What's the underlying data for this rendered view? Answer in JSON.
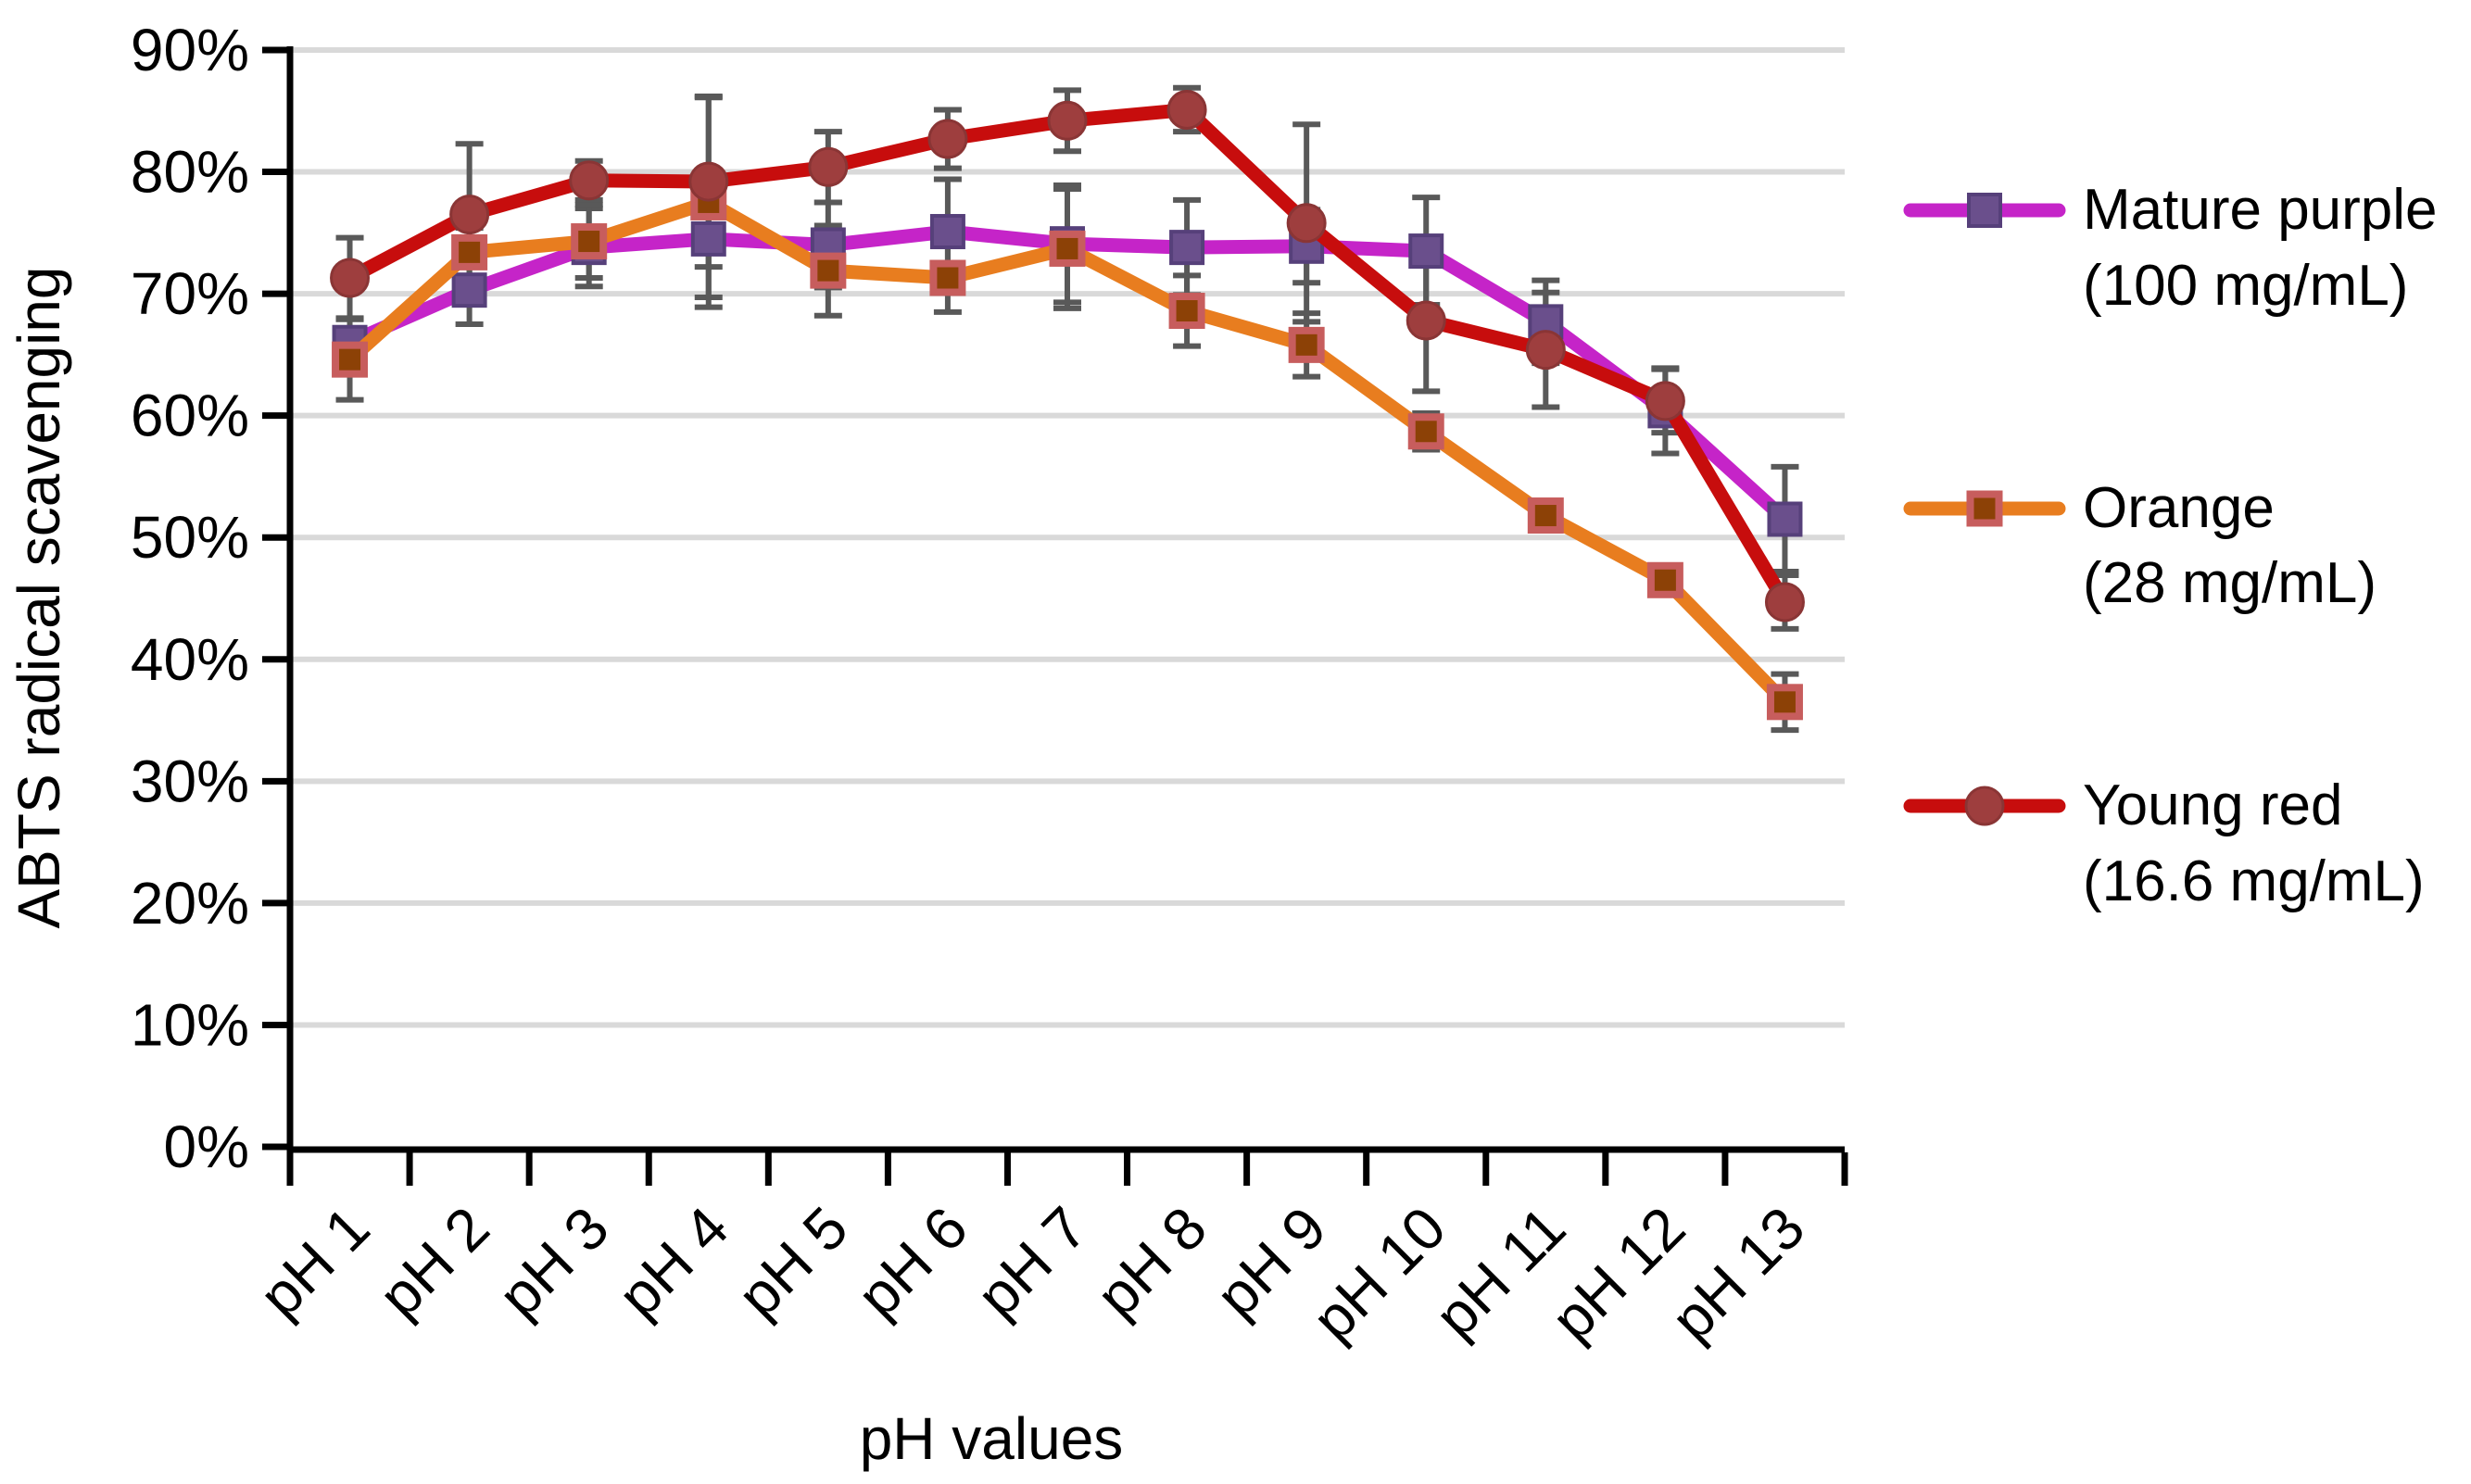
{
  "page": {
    "background": "#FFFFFF"
  },
  "chart_data": {
    "type": "line",
    "title": "",
    "xlabel": "pH values",
    "ylabel": "ABTS radical scavenging",
    "categories": [
      "pH 1",
      "pH 2",
      "pH 3",
      "pH 4",
      "pH 5",
      "pH 6",
      "pH 7",
      "pH 8",
      "pH 9",
      "pH 10",
      "pH 11",
      "pH 12",
      "pH 13"
    ],
    "y_ticks": [
      "0%",
      "10%",
      "20%",
      "30%",
      "40%",
      "50%",
      "60%",
      "70%",
      "80%",
      "90%"
    ],
    "ylim": [
      0,
      90
    ],
    "grid": "horizontal",
    "legend_position": "right",
    "error_bars": true,
    "series": [
      {
        "id": "mature-purple",
        "name": "Mature purple",
        "dose": "(100 mg/mL)",
        "line_color": "#C524C8",
        "marker": "square",
        "marker_fill": "#6A4F8C",
        "marker_stroke": "#56407A",
        "values": [
          66.0,
          70.3,
          73.8,
          74.5,
          74.0,
          75.1,
          74.1,
          73.8,
          73.9,
          73.5,
          67.7,
          60.4,
          51.5
        ],
        "errors": [
          1.2,
          2.8,
          3.2,
          4.8,
          3.5,
          4.3,
          4.8,
          3.9,
          3.0,
          4.4,
          3.4,
          3.5,
          4.3
        ]
      },
      {
        "id": "orange",
        "name": "Orange",
        "dose": "(28 mg/mL)",
        "line_color": "#E87D1F",
        "marker": "square",
        "marker_fill": "#8C4106",
        "marker_stroke": "#C75D5D",
        "values": [
          64.6,
          73.4,
          74.3,
          77.5,
          71.9,
          71.3,
          73.7,
          68.6,
          65.8,
          58.7,
          51.8,
          46.5,
          36.5
        ],
        "errors": [
          3.3,
          2.0,
          3.0,
          8.6,
          3.7,
          2.8,
          4.9,
          2.9,
          2.6,
          1.5,
          1.2,
          1.0,
          2.3
        ]
      },
      {
        "id": "young-red",
        "name": "Young red",
        "dose": "(16.6 mg/mL)",
        "line_color": "#C70D0D",
        "marker": "circle",
        "marker_fill": "#9E3E3E",
        "marker_stroke": "#8A3535",
        "values": [
          71.3,
          76.5,
          79.3,
          79.2,
          80.4,
          82.7,
          84.2,
          85.1,
          75.8,
          67.8,
          65.4,
          61.2,
          44.7
        ],
        "errors": [
          3.3,
          5.8,
          1.6,
          7.0,
          2.9,
          2.4,
          2.5,
          1.8,
          8.1,
          5.8,
          4.7,
          2.6,
          2.2
        ]
      }
    ],
    "error_bar_color": "#595959",
    "grid_color": "#D9D9D9",
    "axis_color": "#000000"
  }
}
